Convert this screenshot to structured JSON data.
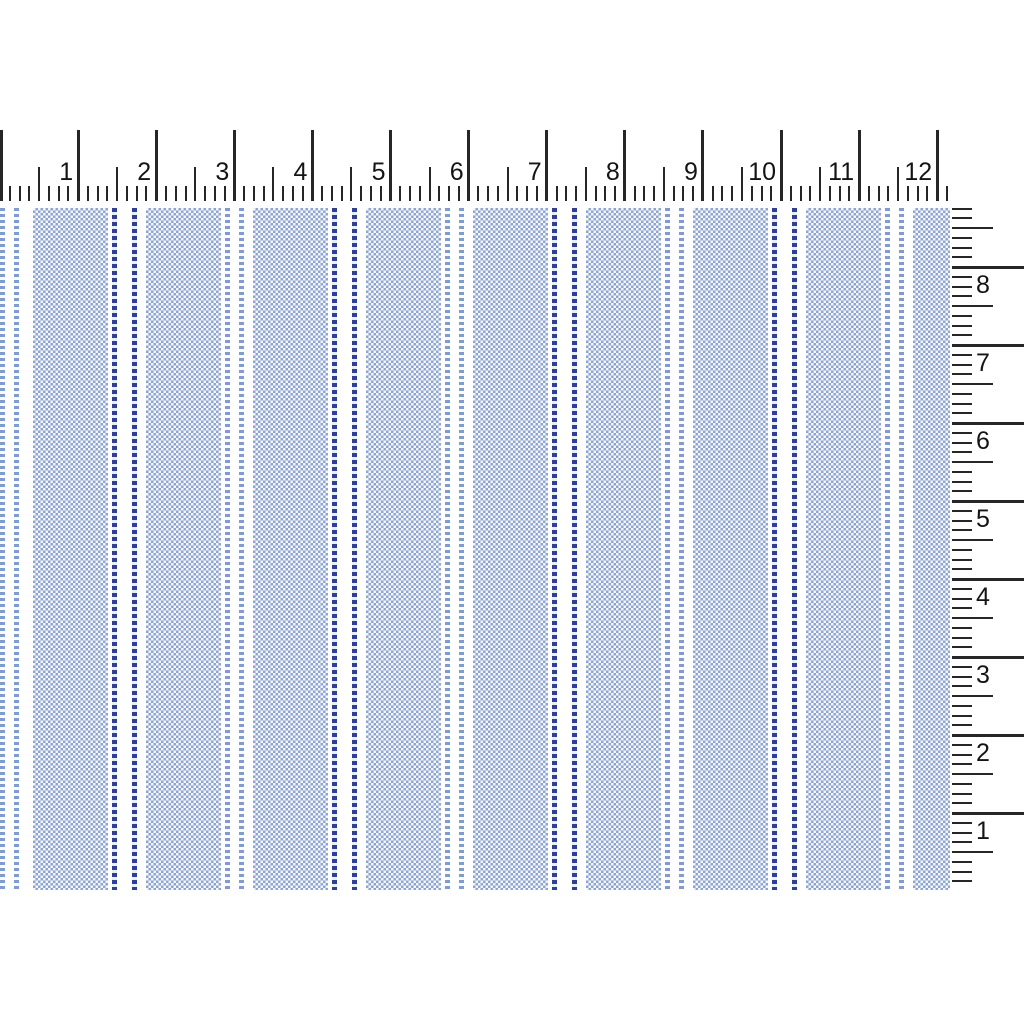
{
  "scene": {
    "description": "Blue and white striped woven fabric swatch with inch rulers along the top and right edges"
  },
  "top_ruler": {
    "orientation": "horizontal",
    "units": "inches",
    "subdivisions_per_inch": 8,
    "labels": [
      "1",
      "2",
      "3",
      "4",
      "5",
      "6",
      "7",
      "8",
      "9",
      "10",
      "11",
      "12"
    ]
  },
  "right_ruler": {
    "orientation": "vertical",
    "units": "inches",
    "subdivisions_per_inch": 8,
    "labels_top_to_bottom": [
      "8",
      "7",
      "6",
      "5",
      "4",
      "3",
      "2",
      "1"
    ]
  },
  "colors": {
    "background": "#ffffff",
    "ruler_tick": "#262626",
    "ruler_label": "#141414",
    "weave_blue": "#8ba6d6",
    "weave_white": "#f7f6f3",
    "pinstripe_navy": "#2f3f96",
    "pinstripe_light": "#7f9cd1"
  },
  "fabric": {
    "lead_in": [
      {
        "type": "pinstripe-light",
        "width": 5
      },
      {
        "type": "gap",
        "width": 9
      },
      {
        "type": "pinstripe-light",
        "width": 5
      },
      {
        "type": "gap",
        "width": 14
      }
    ],
    "repeat_unit": [
      {
        "type": "stripe-wide",
        "width": 75
      },
      {
        "type": "gap",
        "width": 4
      },
      {
        "type": "pinstripe-navy",
        "width": 5
      },
      {
        "type": "gap",
        "width": 15
      },
      {
        "type": "pinstripe-navy",
        "width": 5
      },
      {
        "type": "gap",
        "width": 9
      },
      {
        "type": "stripe-wide",
        "width": 75
      },
      {
        "type": "gap",
        "width": 4
      },
      {
        "type": "pinstripe-light",
        "width": 5
      },
      {
        "type": "gap",
        "width": 9
      },
      {
        "type": "pinstripe-light",
        "width": 5
      },
      {
        "type": "gap",
        "width": 9
      }
    ],
    "repeats": 5
  }
}
